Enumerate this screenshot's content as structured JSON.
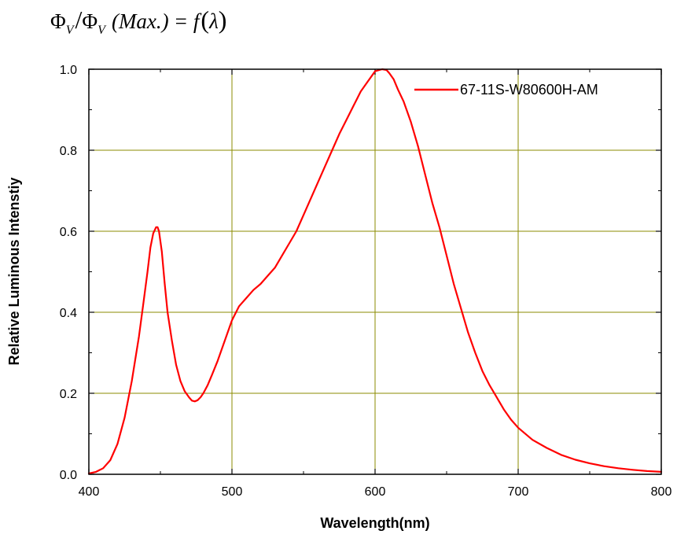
{
  "formula": {
    "phi1": "Φ",
    "sub1": "V",
    "slash": "/",
    "phi2": "Φ",
    "sub2": "V",
    "max": "(Max.)",
    "equals": "=",
    "f": "f",
    "lambda": "λ"
  },
  "chart_data": {
    "type": "line",
    "title": "",
    "xlabel": "Wavelength(nm)",
    "ylabel": "Relative Luminous Intenstiy",
    "xlim": [
      400,
      800
    ],
    "ylim": [
      0.0,
      1.0
    ],
    "x_ticks": [
      400,
      500,
      600,
      700,
      800
    ],
    "x_tick_labels": [
      "400",
      "500",
      "600",
      "700",
      "800"
    ],
    "y_ticks": [
      0.0,
      0.2,
      0.4,
      0.6,
      0.8,
      1.0
    ],
    "y_tick_labels": [
      "0.0",
      "0.2",
      "0.4",
      "0.6",
      "0.8",
      "1.0"
    ],
    "grid": true,
    "grid_color": "#8b8b00",
    "legend_position": "top-right",
    "series": [
      {
        "name": "67-11S-W80600H-AM",
        "color": "#ff0000",
        "x": [
          400,
          405,
          410,
          415,
          420,
          425,
          430,
          435,
          438,
          441,
          443,
          445,
          447,
          448,
          449,
          451,
          453,
          455,
          458,
          461,
          464,
          467,
          470,
          472,
          474,
          476,
          478,
          480,
          483,
          486,
          490,
          495,
          500,
          505,
          510,
          515,
          520,
          525,
          530,
          535,
          540,
          545,
          550,
          555,
          560,
          565,
          570,
          575,
          580,
          585,
          590,
          595,
          598,
          600,
          603,
          605,
          608,
          610,
          613,
          616,
          620,
          625,
          630,
          635,
          640,
          645,
          650,
          655,
          660,
          665,
          670,
          675,
          680,
          685,
          690,
          695,
          700,
          710,
          720,
          730,
          740,
          750,
          760,
          770,
          780,
          790,
          800
        ],
        "y": [
          0.002,
          0.006,
          0.015,
          0.035,
          0.075,
          0.14,
          0.23,
          0.34,
          0.42,
          0.5,
          0.56,
          0.595,
          0.61,
          0.61,
          0.6,
          0.55,
          0.47,
          0.4,
          0.33,
          0.27,
          0.23,
          0.205,
          0.19,
          0.182,
          0.18,
          0.183,
          0.19,
          0.2,
          0.22,
          0.245,
          0.28,
          0.33,
          0.38,
          0.415,
          0.435,
          0.455,
          0.47,
          0.49,
          0.51,
          0.54,
          0.57,
          0.6,
          0.64,
          0.68,
          0.72,
          0.76,
          0.8,
          0.84,
          0.875,
          0.91,
          0.945,
          0.97,
          0.985,
          0.995,
          0.998,
          1.0,
          0.998,
          0.99,
          0.975,
          0.95,
          0.92,
          0.87,
          0.81,
          0.74,
          0.67,
          0.61,
          0.54,
          0.47,
          0.41,
          0.35,
          0.3,
          0.255,
          0.22,
          0.19,
          0.16,
          0.135,
          0.115,
          0.085,
          0.065,
          0.048,
          0.036,
          0.027,
          0.02,
          0.015,
          0.011,
          0.008,
          0.006
        ]
      }
    ]
  }
}
